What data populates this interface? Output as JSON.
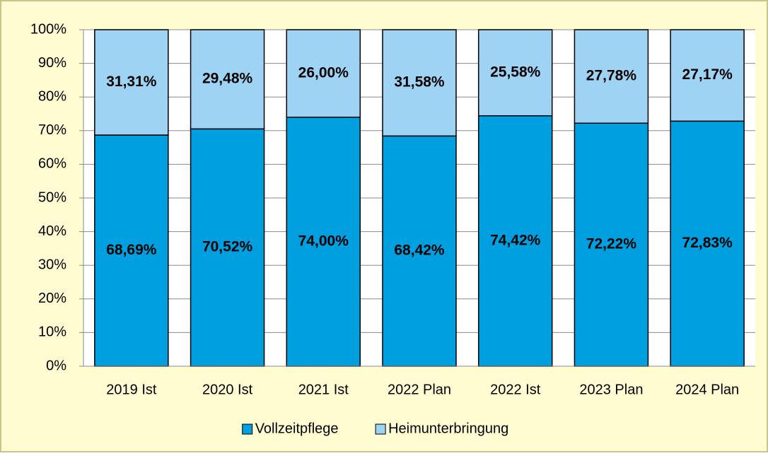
{
  "chart_data": {
    "type": "stacked_bar_100",
    "categories": [
      "2019 Ist",
      "2020 Ist",
      "2021 Ist",
      "2022 Plan",
      "2022 Ist",
      "2023 Plan",
      "2024 Plan"
    ],
    "series": [
      {
        "name": "Vollzeitpflege",
        "color": "#00a0e0",
        "values": [
          68.69,
          70.52,
          74.0,
          68.42,
          74.42,
          72.22,
          72.83
        ],
        "value_labels": [
          "68,69%",
          "70,52%",
          "74,00%",
          "68,42%",
          "74,42%",
          "72,22%",
          "72,83%"
        ]
      },
      {
        "name": "Heimunterbringung",
        "color": "#9fd3f3",
        "values": [
          31.31,
          29.48,
          26.0,
          31.58,
          25.58,
          27.78,
          27.17
        ],
        "value_labels": [
          "31,31%",
          "29,48%",
          "26,00%",
          "31,58%",
          "25,58%",
          "27,78%",
          "27,17%"
        ]
      }
    ],
    "ylim": [
      0,
      100
    ],
    "yticks": [
      {
        "value": 0,
        "label": "0%"
      },
      {
        "value": 10,
        "label": "10%"
      },
      {
        "value": 20,
        "label": "20%"
      },
      {
        "value": 30,
        "label": "30%"
      },
      {
        "value": 40,
        "label": "40%"
      },
      {
        "value": 50,
        "label": "50%"
      },
      {
        "value": 60,
        "label": "60%"
      },
      {
        "value": 70,
        "label": "70%"
      },
      {
        "value": 80,
        "label": "80%"
      },
      {
        "value": 90,
        "label": "90%"
      },
      {
        "value": 100,
        "label": "100%"
      }
    ],
    "grid": true,
    "legend": "bottom"
  }
}
